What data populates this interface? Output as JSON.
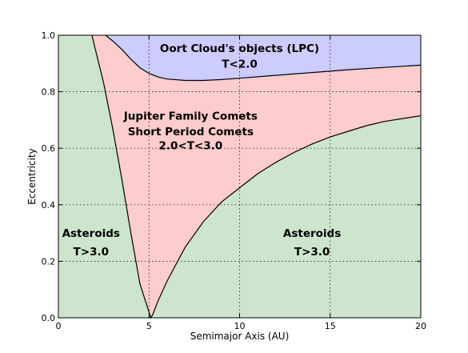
{
  "chart_data": {
    "type": "area",
    "xlabel": "Semimajor Axis (AU)",
    "ylabel": "Eccentricity",
    "xlim": [
      0,
      20
    ],
    "ylim": [
      0,
      1
    ],
    "xticks": [
      "0",
      "5",
      "10",
      "15",
      "20"
    ],
    "yticks": [
      "0.0",
      "0.2",
      "0.4",
      "0.6",
      "0.8",
      "1.0"
    ],
    "grid": true,
    "colors": {
      "asteroids": "#cce5cc",
      "jfc": "#fdcccc",
      "oort": "#ccccfd"
    },
    "boundaries": {
      "asteroid_limit": {
        "x": [
          1.85,
          2,
          2.5,
          3,
          3.5,
          4,
          4.5,
          5,
          5.1,
          5.2,
          5.5,
          6,
          6.5,
          7,
          8,
          9,
          10,
          11,
          12,
          13,
          14,
          15,
          16,
          17,
          18,
          19,
          20
        ],
        "y": [
          1.0,
          0.96,
          0.83,
          0.67,
          0.49,
          0.3,
          0.12,
          0.02,
          0.0,
          0.01,
          0.06,
          0.13,
          0.19,
          0.25,
          0.34,
          0.41,
          0.46,
          0.51,
          0.55,
          0.585,
          0.615,
          0.64,
          0.66,
          0.68,
          0.695,
          0.705,
          0.715
        ]
      },
      "oort_limit": {
        "x": [
          2.6,
          3,
          3.5,
          4,
          4.5,
          5,
          5.5,
          6,
          7,
          8,
          9,
          10,
          12,
          14,
          16,
          18,
          20
        ],
        "y": [
          1.0,
          0.98,
          0.95,
          0.915,
          0.885,
          0.865,
          0.852,
          0.845,
          0.84,
          0.84,
          0.843,
          0.848,
          0.858,
          0.868,
          0.878,
          0.886,
          0.894
        ]
      }
    },
    "annotations": [
      {
        "id": "oort",
        "lines": [
          "Oort Cloud's objects (LPC)",
          "T<2.0"
        ],
        "x": 10.0,
        "y": [
          0.955,
          0.9
        ]
      },
      {
        "id": "jfc",
        "lines": [
          "Jupiter Family Comets",
          "Short Period Comets",
          "2.0<T<3.0"
        ],
        "x": 7.3,
        "y": [
          0.715,
          0.66,
          0.61
        ]
      },
      {
        "id": "ast-left",
        "lines": [
          "Asteroids",
          "T>3.0"
        ],
        "x": 1.8,
        "y": [
          0.3,
          0.235
        ]
      },
      {
        "id": "ast-right",
        "lines": [
          "Asteroids",
          "T>3.0"
        ],
        "x": 14.0,
        "y": [
          0.3,
          0.235
        ]
      }
    ]
  }
}
